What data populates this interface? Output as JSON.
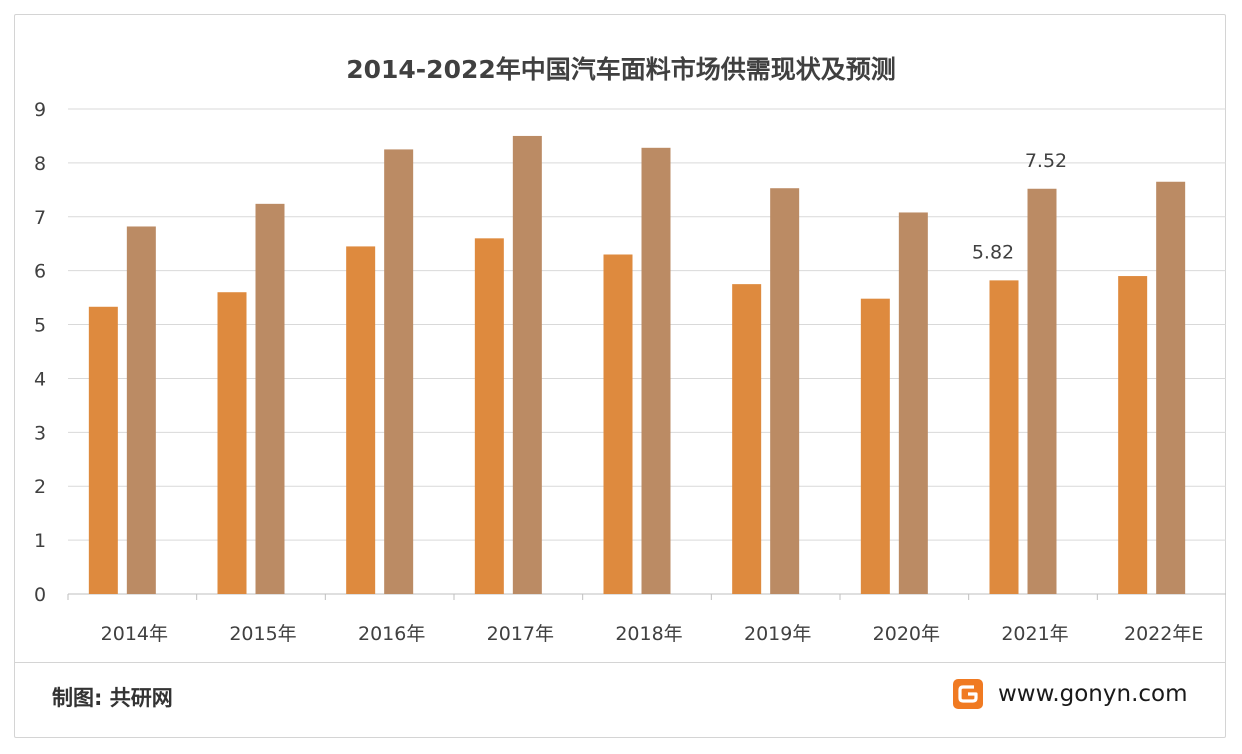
{
  "chart_data": {
    "type": "bar",
    "title": "2014-2022年中国汽车面料市场供需现状及预测",
    "categories": [
      "2014年",
      "2015年",
      "2016年",
      "2017年",
      "2018年",
      "2019年",
      "2020年",
      "2021年",
      "2022年E"
    ],
    "series": [
      {
        "color": "#de8a3e",
        "values": [
          5.33,
          5.6,
          6.45,
          6.6,
          6.3,
          5.75,
          5.48,
          5.82,
          5.9
        ]
      },
      {
        "color": "#bb8b64",
        "values": [
          6.82,
          7.24,
          8.25,
          8.5,
          8.28,
          7.53,
          7.08,
          7.52,
          7.65
        ]
      }
    ],
    "ylim": [
      0,
      9
    ],
    "yticks": [
      "0",
      "1",
      "2",
      "3",
      "4",
      "5",
      "6",
      "7",
      "8",
      "9"
    ],
    "grid": true,
    "data_labels": [
      {
        "category_index": 7,
        "series_index": 0,
        "text": "5.82"
      },
      {
        "category_index": 7,
        "series_index": 1,
        "text": "7.52"
      }
    ]
  },
  "footer": {
    "source": "制图: 共研网",
    "url": "www.gonyn.com"
  },
  "colors": {
    "grid": "#d9d9d9",
    "axis": "#bfbfbf",
    "logo": "#f07a22"
  },
  "icons": {
    "brand_logo": "gonyn-logo-icon"
  }
}
